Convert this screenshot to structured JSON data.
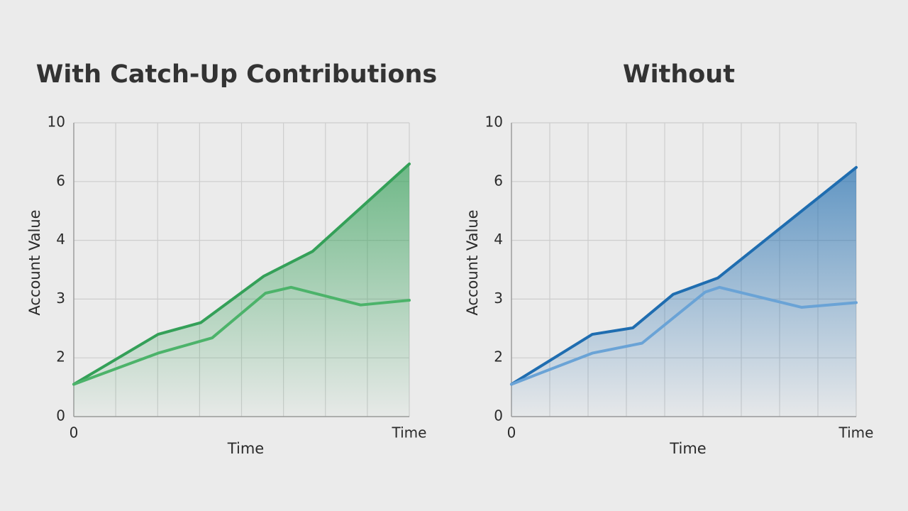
{
  "chart_data": [
    {
      "type": "line",
      "title": "With Catch-Up Contributions",
      "y_label": "Account Value",
      "x_label": "Time",
      "xlim": [
        0,
        8
      ],
      "xticks": [
        0,
        {
          "value": 8,
          "label": "Time"
        }
      ],
      "xgrid": [
        0,
        1,
        2,
        3,
        4,
        5,
        6,
        7,
        8
      ],
      "ylim": [
        0,
        10
      ],
      "yticks": [
        0,
        2,
        3,
        4,
        6,
        10
      ],
      "grid": true,
      "area": true,
      "series": [
        {
          "color": "#34a058",
          "x": [
            0,
            2.01,
            3.03,
            4.53,
            5.69,
            8
          ],
          "values": [
            1.1,
            2.4,
            2.6,
            3.39,
            3.81,
            7.2
          ]
        },
        {
          "color": "#4cb36a",
          "x": [
            0,
            2.01,
            3.3,
            4.57,
            5.18,
            6.84,
            8
          ],
          "values": [
            1.1,
            2.08,
            2.34,
            3.1,
            3.2,
            2.9,
            2.98
          ]
        }
      ]
    },
    {
      "type": "line",
      "title": "Without",
      "y_label": "Account Value",
      "x_label": "Time",
      "xlim": [
        0,
        9
      ],
      "xticks": [
        0,
        {
          "value": 9,
          "label": "Time"
        }
      ],
      "xgrid": [
        0,
        1,
        2,
        3,
        4,
        5,
        6,
        7,
        8,
        9
      ],
      "ylim": [
        0,
        10
      ],
      "yticks": [
        0,
        2,
        3,
        4,
        6,
        10
      ],
      "grid": true,
      "area": true,
      "series": [
        {
          "color": "#1f6db0",
          "x": [
            0,
            2.11,
            3.17,
            4.22,
            5.39,
            9
          ],
          "values": [
            1.1,
            2.4,
            2.51,
            3.08,
            3.36,
            6.96
          ]
        },
        {
          "color": "#6aa3d6",
          "x": [
            0,
            2.11,
            3.41,
            5.06,
            5.43,
            7.57,
            9
          ],
          "values": [
            1.1,
            2.08,
            2.25,
            3.12,
            3.2,
            2.86,
            2.94
          ]
        }
      ]
    }
  ]
}
